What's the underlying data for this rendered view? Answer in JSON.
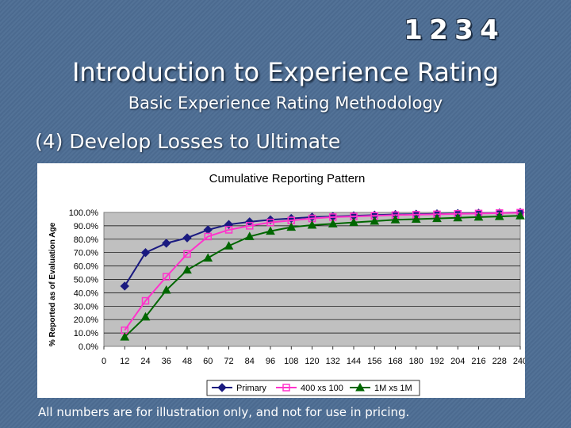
{
  "header": {
    "badges": [
      "1",
      "2",
      "3",
      "4"
    ],
    "title": "Introduction to Experience Rating",
    "subtitle": "Basic Experience Rating Methodology",
    "section": "(4)  Develop Losses to Ultimate"
  },
  "footnote": "All numbers are for illustration only, and not for use in pricing.",
  "chart_data": {
    "type": "line",
    "title": "Cumulative Reporting Pattern",
    "xlabel": "",
    "ylabel": "% Reported as of Evaluation Age",
    "xlim": [
      0,
      240
    ],
    "ylim": [
      0,
      100
    ],
    "x_ticks": [
      0,
      12,
      24,
      36,
      48,
      60,
      72,
      84,
      96,
      108,
      120,
      132,
      144,
      156,
      168,
      180,
      192,
      204,
      216,
      228,
      240
    ],
    "y_ticks": [
      "0.0%",
      "10.0%",
      "20.0%",
      "30.0%",
      "40.0%",
      "50.0%",
      "60.0%",
      "70.0%",
      "80.0%",
      "90.0%",
      "100.0%"
    ],
    "grid": "horizontal",
    "legend": "bottom",
    "x": [
      12,
      24,
      36,
      48,
      60,
      72,
      84,
      96,
      108,
      120,
      132,
      144,
      156,
      168,
      180,
      192,
      204,
      216,
      228,
      240
    ],
    "series": [
      {
        "name": "Primary",
        "color": "#1a1a80",
        "marker": "diamond",
        "values": [
          45,
          70,
          77,
          81,
          87,
          91,
          93,
          94.5,
          95.5,
          96.5,
          97,
          97.5,
          98,
          98.5,
          98.7,
          99,
          99.2,
          99.4,
          99.6,
          100
        ]
      },
      {
        "name": "400 xs 100",
        "color": "#ff33cc",
        "marker": "square",
        "values": [
          12,
          34,
          52,
          69,
          82,
          87,
          90,
          92.5,
          94,
          95.5,
          96.5,
          97,
          97.5,
          98,
          98.3,
          98.6,
          99,
          99.2,
          99.5,
          99.8
        ]
      },
      {
        "name": "1M xs 1M",
        "color": "#006600",
        "marker": "triangle",
        "values": [
          7,
          22,
          42,
          57,
          66,
          75,
          82,
          86,
          89,
          90.5,
          91.5,
          92.5,
          93.5,
          94.5,
          95,
          95.5,
          96,
          96.5,
          97,
          97.5
        ]
      }
    ]
  }
}
